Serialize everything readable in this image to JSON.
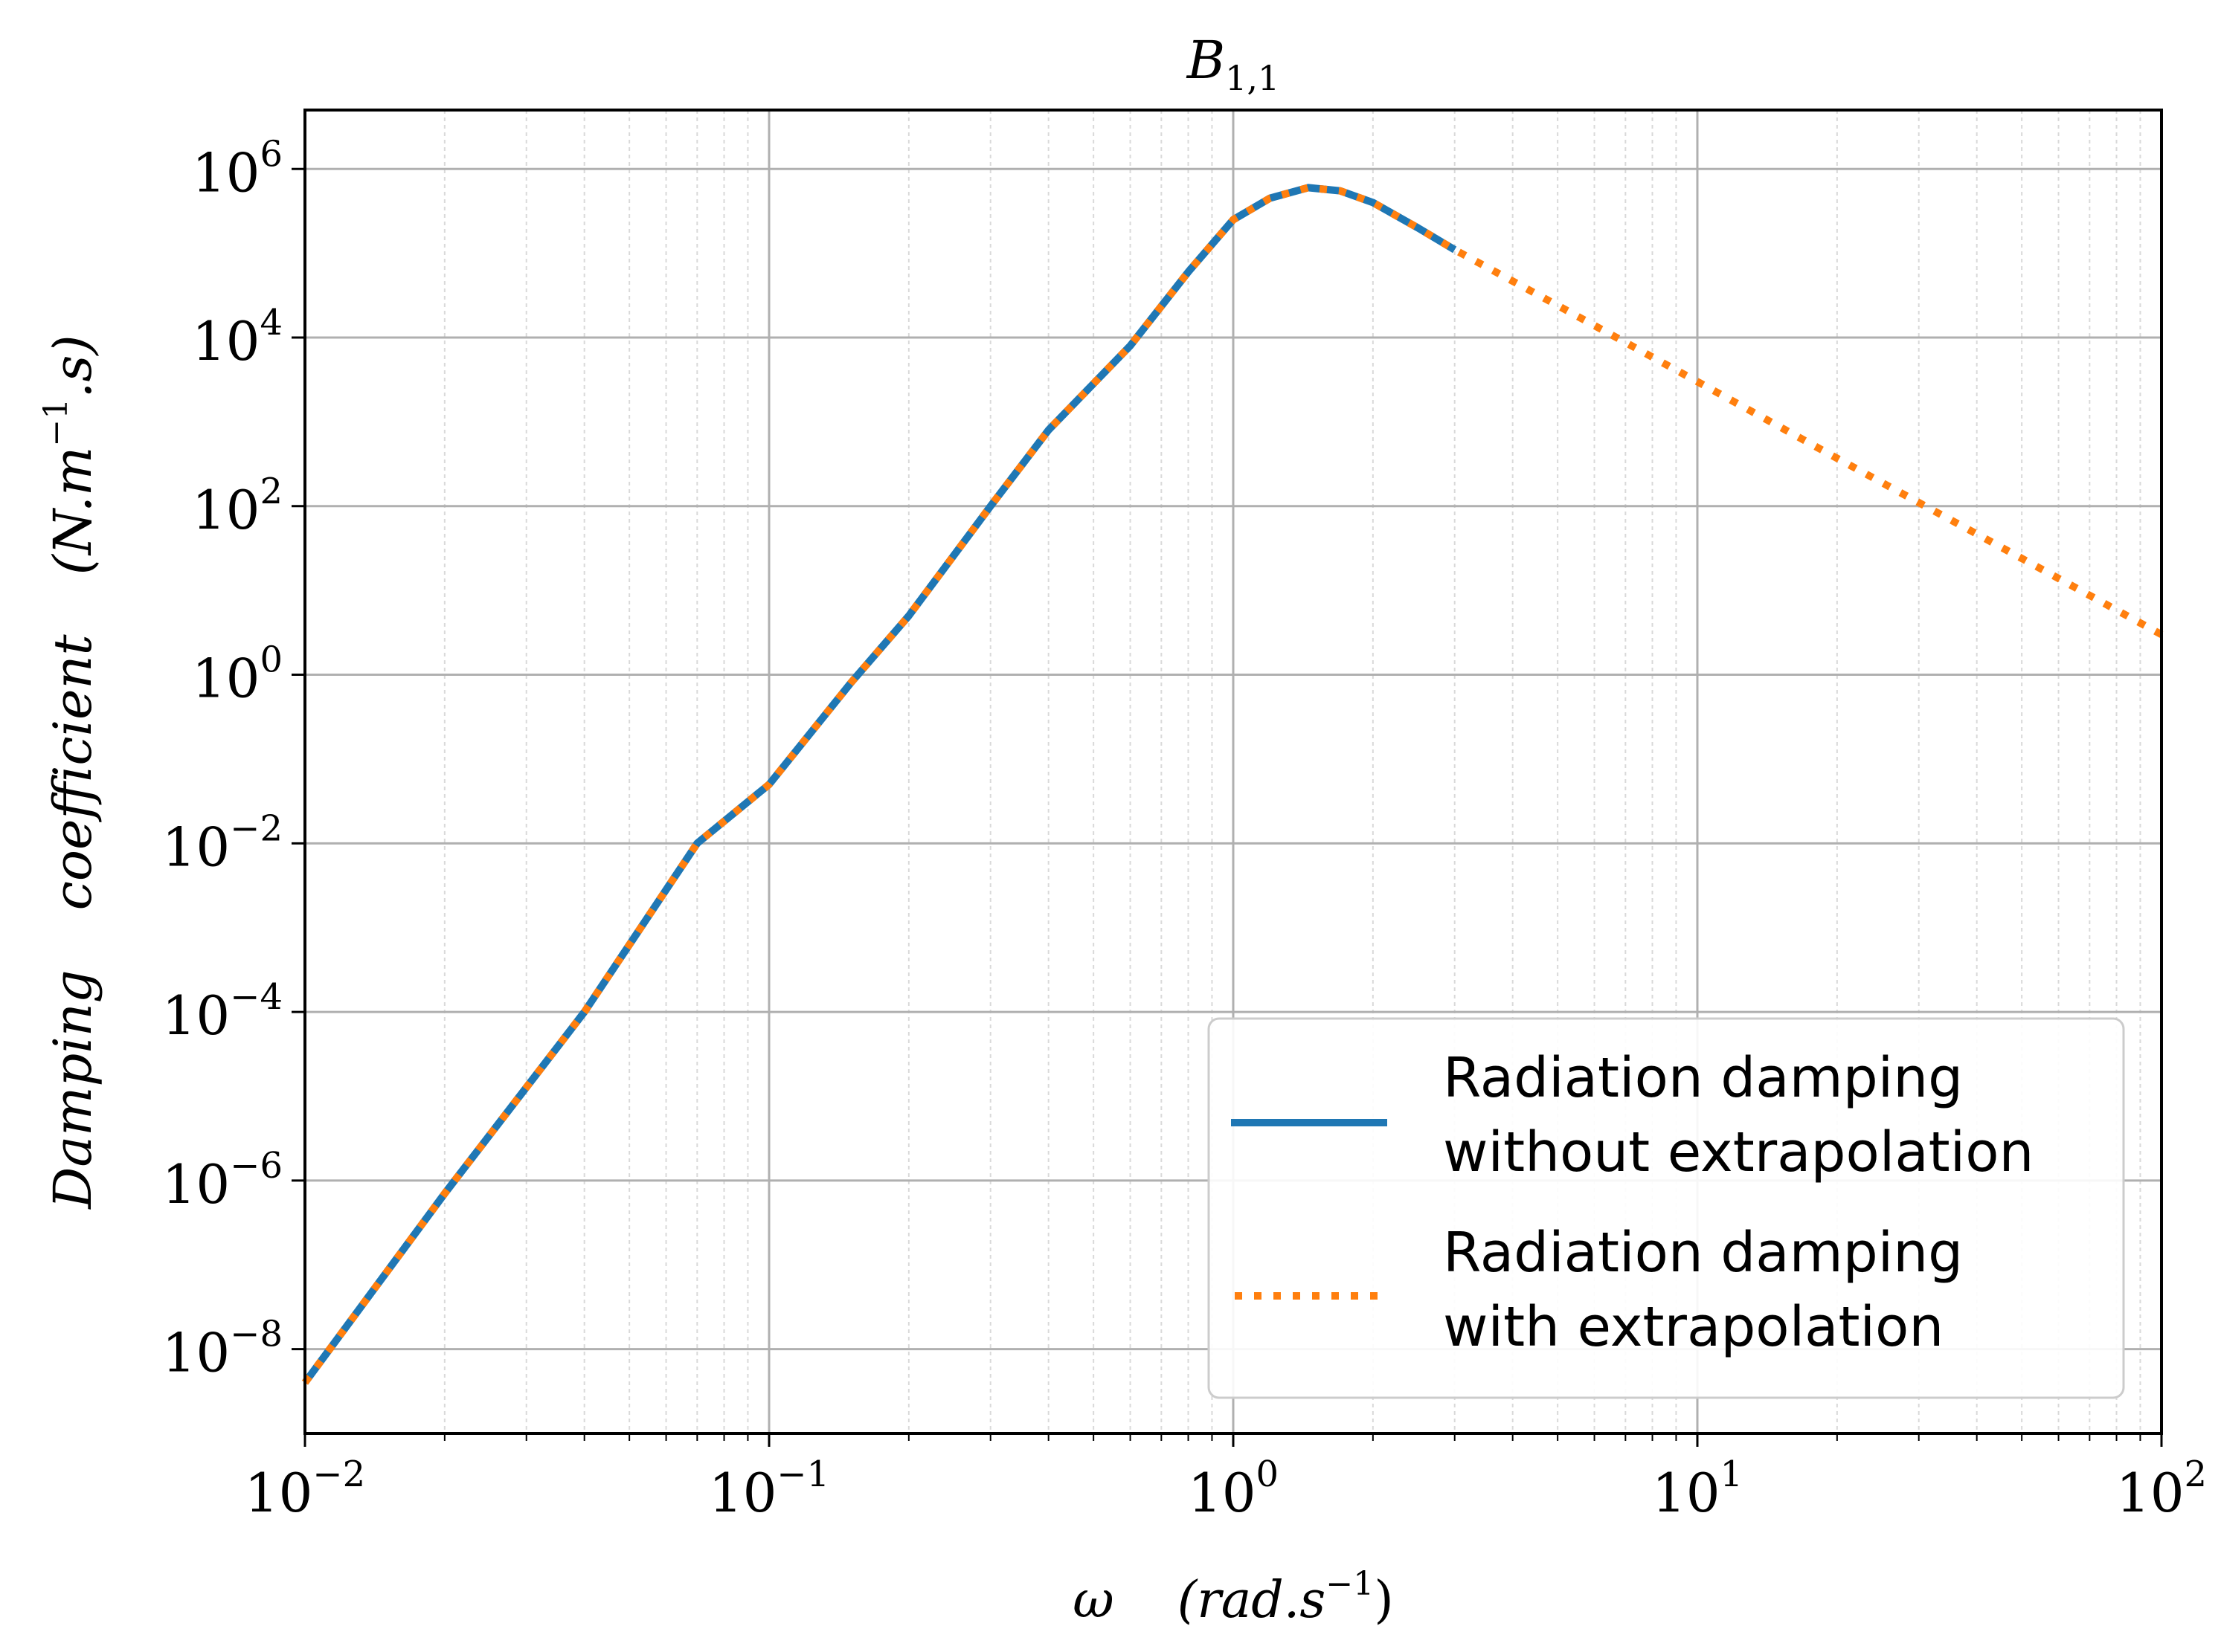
{
  "chart_data": {
    "type": "line",
    "title": "B",
    "title_sub": "1,1",
    "xlabel": {
      "symbol": "ω",
      "units_open": "(rad.s",
      "units_sup": "−1",
      "units_close": ")"
    },
    "ylabel": {
      "words": [
        "Damping",
        "coefficient"
      ],
      "units_open": "(N.m",
      "units_sup": "−1",
      "units_close": ".s)"
    },
    "x_scale": "log",
    "y_scale": "log",
    "xlim": [
      0.01,
      100
    ],
    "ylim": [
      1e-09,
      5000000.0
    ],
    "x_ticks": [
      {
        "base": "10",
        "exp": "−2"
      },
      {
        "base": "10",
        "exp": "−1"
      },
      {
        "base": "10",
        "exp": "0"
      },
      {
        "base": "10",
        "exp": "1"
      },
      {
        "base": "10",
        "exp": "2"
      }
    ],
    "y_ticks": [
      {
        "base": "10",
        "exp": "−8"
      },
      {
        "base": "10",
        "exp": "−6"
      },
      {
        "base": "10",
        "exp": "−4"
      },
      {
        "base": "10",
        "exp": "−2"
      },
      {
        "base": "10",
        "exp": "0"
      },
      {
        "base": "10",
        "exp": "2"
      },
      {
        "base": "10",
        "exp": "4"
      },
      {
        "base": "10",
        "exp": "6"
      }
    ],
    "grid": {
      "major": true,
      "minor": true
    },
    "legend_position": "lower-right",
    "series": [
      {
        "name": [
          "Radiation damping",
          "without extrapolation"
        ],
        "color": "#1f77b4",
        "style": "solid",
        "x": [
          0.01,
          0.02,
          0.04,
          0.07,
          0.1,
          0.15,
          0.2,
          0.3,
          0.4,
          0.6,
          0.8,
          1.0,
          1.2,
          1.45,
          1.7,
          2.0,
          2.5,
          3.0
        ],
        "y": [
          4e-09,
          7e-07,
          0.0001,
          0.01,
          0.05,
          0.8,
          5,
          100,
          800,
          8000,
          60000,
          250000,
          450000,
          600000,
          550000,
          400000,
          200000,
          110000
        ]
      },
      {
        "name": [
          "Radiation damping",
          "with extrapolation"
        ],
        "color": "#ff7f0e",
        "style": "dotted",
        "x": [
          0.01,
          0.02,
          0.04,
          0.07,
          0.1,
          0.15,
          0.2,
          0.3,
          0.4,
          0.6,
          0.8,
          1.0,
          1.2,
          1.45,
          1.7,
          2.0,
          2.5,
          3.0,
          5,
          10,
          20,
          50,
          100
        ],
        "y": [
          4e-09,
          7e-07,
          0.0001,
          0.01,
          0.05,
          0.8,
          5,
          100,
          800,
          8000,
          60000,
          250000,
          450000,
          600000,
          550000,
          400000,
          200000,
          110000,
          24000,
          3000,
          370,
          24,
          3
        ]
      }
    ]
  }
}
